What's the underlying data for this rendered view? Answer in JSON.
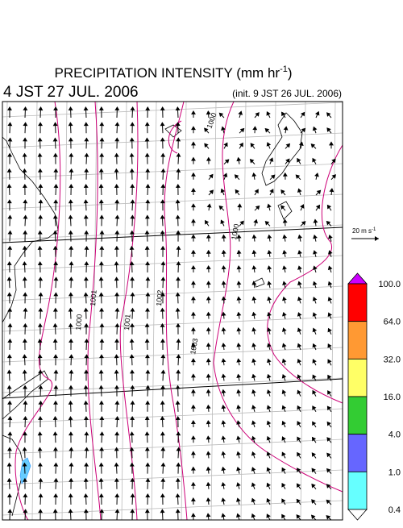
{
  "header": {
    "title": "PRECIPITATION INTENSITY (mm hr",
    "title_exponent": "-1",
    "title_close": ")",
    "valid_time": "4 JST 27 JUL. 2006",
    "init_time": "(init. 9 JST 26 JUL. 2006)"
  },
  "wind_scale": {
    "label": "20 m s",
    "exponent": "-1"
  },
  "isobar_labels": [
    "1000",
    "1000",
    "1001",
    "1001",
    "1002",
    "1003",
    "1000"
  ],
  "colorbar": {
    "over_color": "#cc00ff",
    "under_color": "#ffffff",
    "colors": [
      "#ff0000",
      "#ff9933",
      "#ffff66",
      "#33cc33",
      "#6666ff",
      "#66ffff"
    ],
    "labels": [
      "100.0",
      "64.0",
      "32.0",
      "16.0",
      "4.0",
      "1.0",
      "0.4"
    ]
  }
}
